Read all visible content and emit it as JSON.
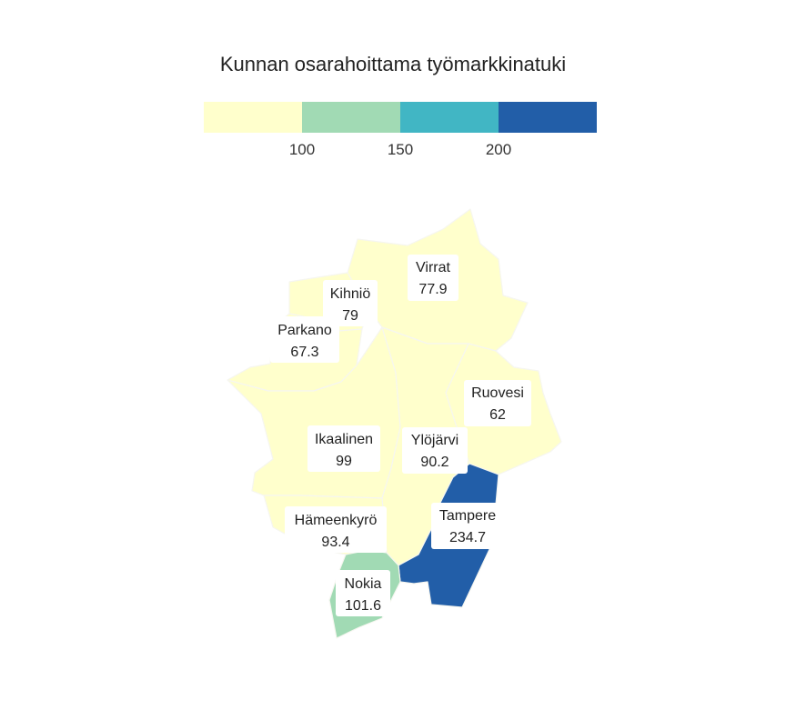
{
  "title": "Kunnan osarahoittama työmarkkinatuki",
  "legend": {
    "colors": [
      "#ffffcc",
      "#a1dab4",
      "#41b6c4",
      "#225ea8"
    ],
    "ticks": [
      "100",
      "150",
      "200"
    ]
  },
  "municipalities": [
    {
      "id": "virrat",
      "name": "Virrat",
      "value": "77.9",
      "color": "#ffffcc"
    },
    {
      "id": "kihnio",
      "name": "Kihniö",
      "value": "79",
      "color": "#ffffcc"
    },
    {
      "id": "parkano",
      "name": "Parkano",
      "value": "67.3",
      "color": "#ffffcc"
    },
    {
      "id": "ruovesi",
      "name": "Ruovesi",
      "value": "62",
      "color": "#ffffcc"
    },
    {
      "id": "ikaalinen",
      "name": "Ikaalinen",
      "value": "99",
      "color": "#ffffcc"
    },
    {
      "id": "ylojarvi",
      "name": "Ylöjärvi",
      "value": "90.2",
      "color": "#ffffcc"
    },
    {
      "id": "tampere",
      "name": "Tampere",
      "value": "234.7",
      "color": "#225ea8"
    },
    {
      "id": "hameenkyro",
      "name": "Hämeenkyrö",
      "value": "93.4",
      "color": "#ffffcc"
    },
    {
      "id": "nokia",
      "name": "Nokia",
      "value": "101.6",
      "color": "#a1dab4"
    }
  ]
}
